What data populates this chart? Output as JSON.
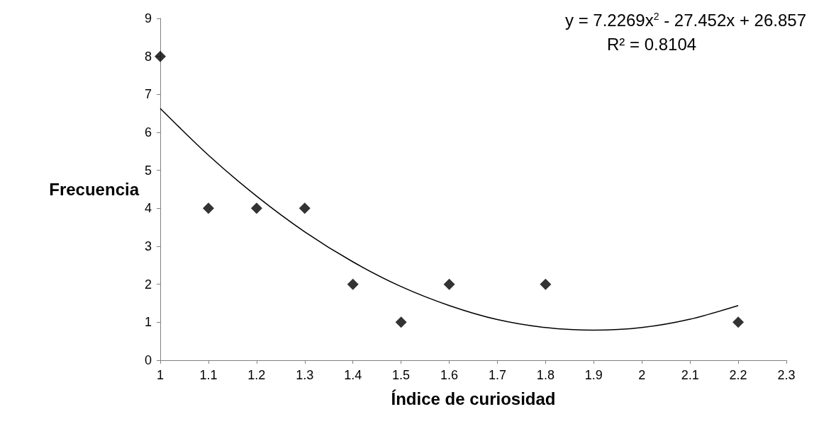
{
  "chart_data": {
    "type": "scatter",
    "xlabel": "Índice de curiosidad",
    "ylabel": "Frecuencia",
    "xlim": [
      1,
      2.3
    ],
    "xticks": [
      1,
      1.1,
      1.2,
      1.3,
      1.4,
      1.5,
      1.6,
      1.7,
      1.8,
      1.9,
      2,
      2.1,
      2.2,
      2.3
    ],
    "ylim": [
      0,
      9
    ],
    "yticks": [
      0,
      1,
      2,
      3,
      4,
      5,
      6,
      7,
      8,
      9
    ],
    "grid": false,
    "marker": "diamond",
    "annotations": [
      "y = 7.2269x$^{2}$ - 27.452x + 26.857",
      "R² = 0.8104"
    ],
    "series": [
      {
        "color": "#000000",
        "x": [
          1,
          1.1,
          1.2,
          1.3,
          1.4,
          1.5,
          1.6,
          1.8,
          2.2
        ],
        "values": [
          8,
          4,
          4,
          4,
          2,
          1,
          2,
          2,
          1
        ]
      },
      {
        "type": "line",
        "color": "#000000",
        "marker": "none",
        "x": [
          1,
          1.1,
          1.2,
          1.3,
          1.4,
          1.5,
          1.6,
          1.7,
          1.8,
          1.9,
          2,
          2.1,
          2.2
        ],
        "values": [
          6.63,
          5.4,
          4.32,
          3.38,
          2.59,
          1.94,
          1.44,
          1.07,
          0.86,
          0.79,
          0.86,
          1.08,
          1.44
        ]
      }
    ]
  }
}
